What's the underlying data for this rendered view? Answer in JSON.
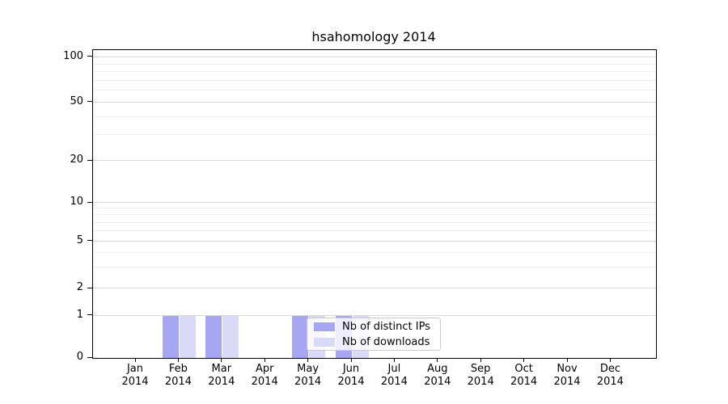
{
  "title": "hsahomology 2014",
  "chart_data": {
    "type": "bar",
    "title": "hsahomology 2014",
    "x_months": [
      "Jan",
      "Feb",
      "Mar",
      "Apr",
      "May",
      "Jun",
      "Jul",
      "Aug",
      "Sep",
      "Oct",
      "Nov",
      "Dec"
    ],
    "x_year": "2014",
    "categories": [
      "Jan 2014",
      "Feb 2014",
      "Mar 2014",
      "Apr 2014",
      "May 2014",
      "Jun 2014",
      "Jul 2014",
      "Aug 2014",
      "Sep 2014",
      "Oct 2014",
      "Nov 2014",
      "Dec 2014"
    ],
    "series": [
      {
        "name": "Nb of distinct IPs",
        "color": "#a6a6f2",
        "values": [
          0,
          1,
          1,
          0,
          1,
          1,
          0,
          0,
          0,
          0,
          0,
          0
        ]
      },
      {
        "name": "Nb of downloads",
        "color": "#d9d9f8",
        "values": [
          0,
          1,
          1,
          0,
          1,
          1,
          0,
          0,
          0,
          0,
          0,
          0
        ]
      }
    ],
    "yscale": "symlog",
    "y_ticks": [
      0,
      1,
      2,
      5,
      10,
      20,
      50,
      100
    ],
    "ylim": [
      0,
      115
    ],
    "grid": "horizontal-only",
    "legend_position": "lower-center"
  },
  "colors": {
    "background": "#ffffff",
    "axis": "#000000",
    "grid_major": "#d9d9d9",
    "grid_minor": "#efefef",
    "bar_distinct_ips": "#a6a6f2",
    "bar_downloads": "#d9d9f8",
    "legend_border": "#cccccc"
  }
}
